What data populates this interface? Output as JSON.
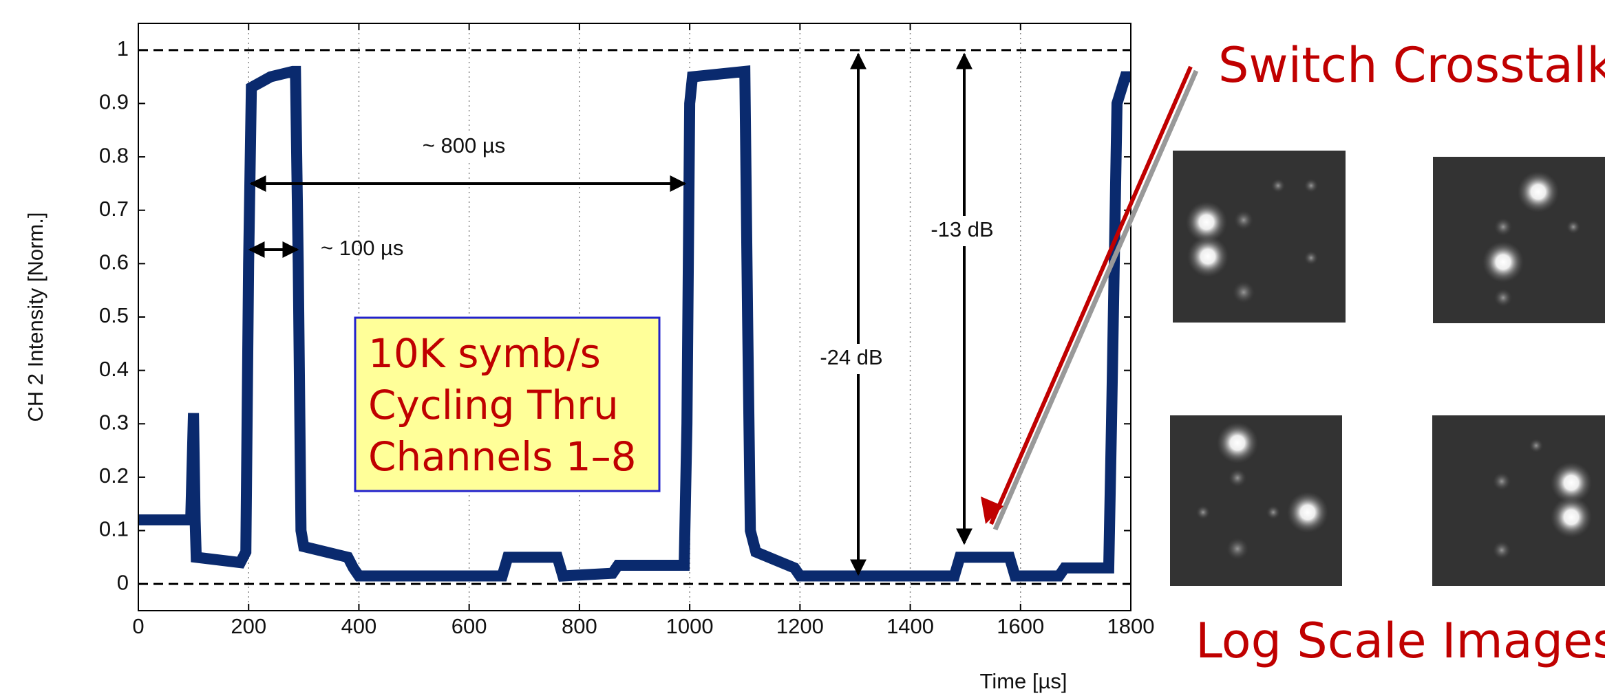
{
  "chart_data": {
    "type": "line",
    "xlabel": "Time [µs]",
    "ylabel": "CH 2 Intensity [Norm.]",
    "x": [
      0,
      95,
      100,
      103,
      105,
      185,
      195,
      200,
      205,
      240,
      280,
      285,
      290,
      295,
      300,
      380,
      390,
      400,
      660,
      670,
      760,
      770,
      860,
      870,
      990,
      995,
      1000,
      1005,
      1100,
      1105,
      1110,
      1120,
      1190,
      1200,
      1480,
      1490,
      1580,
      1590,
      1670,
      1680,
      1760,
      1765,
      1775,
      1790,
      1800
    ],
    "values": [
      0.12,
      0.12,
      0.32,
      0.12,
      0.05,
      0.04,
      0.06,
      0.6,
      0.93,
      0.95,
      0.96,
      0.96,
      0.6,
      0.1,
      0.07,
      0.05,
      0.03,
      0.015,
      0.015,
      0.05,
      0.05,
      0.015,
      0.02,
      0.035,
      0.035,
      0.3,
      0.9,
      0.95,
      0.96,
      0.5,
      0.1,
      0.06,
      0.03,
      0.015,
      0.015,
      0.05,
      0.05,
      0.015,
      0.015,
      0.03,
      0.03,
      0.3,
      0.9,
      0.95,
      0.95
    ],
    "color": "#0a2a6e",
    "xlim": [
      0,
      1800
    ],
    "ylim": [
      -0.05,
      1.05
    ],
    "xticks": [
      0,
      200,
      400,
      600,
      800,
      1000,
      1200,
      1400,
      1600,
      1800
    ],
    "yticks": [
      0,
      0.1,
      0.2,
      0.3,
      0.4,
      0.5,
      0.6,
      0.7,
      0.8,
      0.9,
      1
    ],
    "grid": "x",
    "reference_lines": [
      0,
      1
    ],
    "annotations": [
      "~ 800 µs",
      "~ 100 µs",
      "-24 dB",
      "-13 dB"
    ],
    "box_text": [
      "10K symb/s",
      "Cycling Thru",
      "Channels 1–8"
    ],
    "callout": "Switch Crosstalk!",
    "caption": "Log Scale Images"
  }
}
